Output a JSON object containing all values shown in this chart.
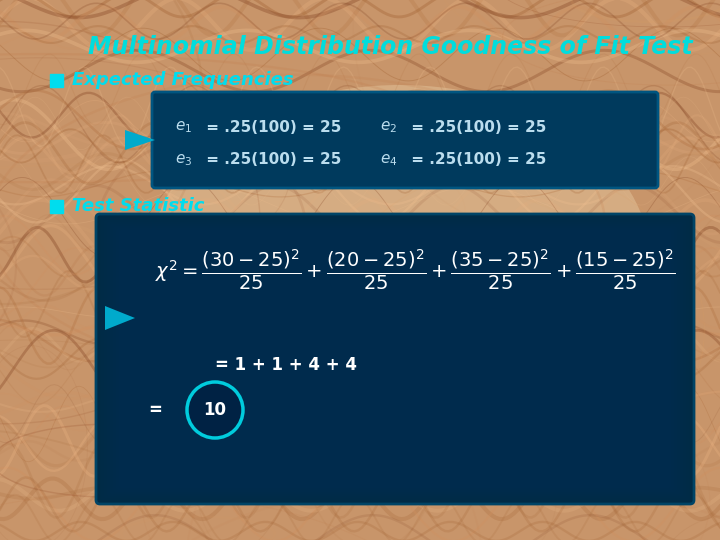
{
  "title": "Multinomial Distribution Goodness of Fit Test",
  "title_color": "#00DDDD",
  "title_fontsize": 17,
  "bullet_color": "#00DDEE",
  "bullet1_text": "Expected Frequencies",
  "bullet2_text": "Test Statistic",
  "box_bg": "#003A5C",
  "box_edge": "#004466",
  "text_color": "#CCEEEE",
  "arrow_color": "#00AACC",
  "sum_text": "= 1 + 1 + 4 + 4",
  "circle_color": "#00CCDD",
  "formula_color": "#DDDDDD",
  "bg_wood_base": "#D4956A"
}
